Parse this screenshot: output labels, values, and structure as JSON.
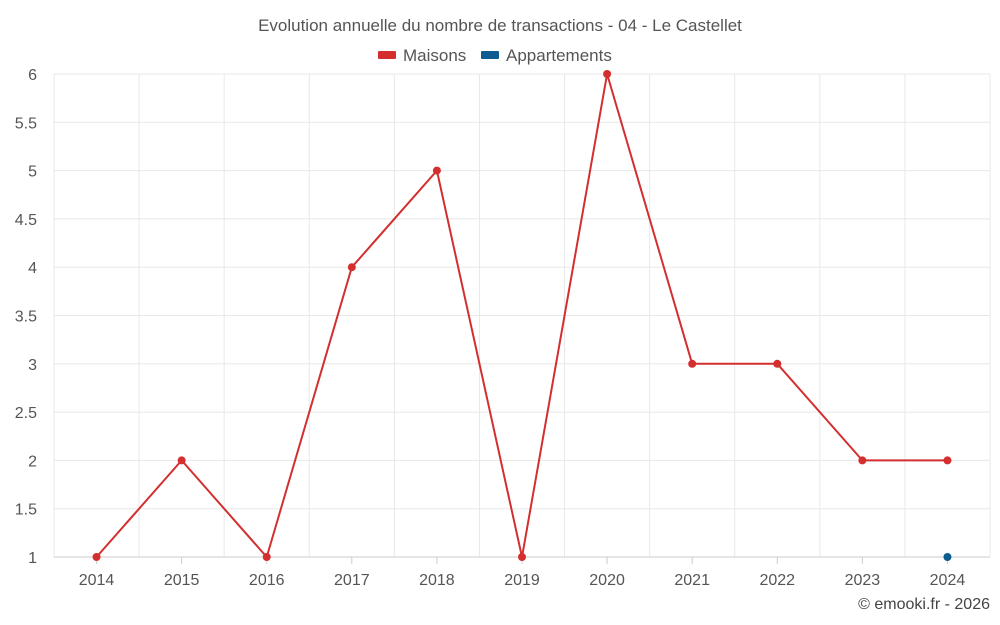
{
  "chart_data": {
    "type": "line",
    "title": "Evolution annuelle du nombre de transactions - 04 - Le Castellet",
    "x": [
      "2014",
      "2015",
      "2016",
      "2017",
      "2018",
      "2019",
      "2020",
      "2021",
      "2022",
      "2023",
      "2024"
    ],
    "series": [
      {
        "name": "Maisons",
        "color": "#d32f2f",
        "values": [
          1,
          2,
          1,
          4,
          5,
          1,
          6,
          3,
          3,
          2,
          2
        ]
      },
      {
        "name": "Appartements",
        "color": "#0d5c91",
        "values": [
          null,
          null,
          null,
          null,
          null,
          null,
          null,
          null,
          null,
          null,
          1
        ]
      }
    ],
    "yticks": [
      "1",
      "1.5",
      "2",
      "2.5",
      "3",
      "3.5",
      "4",
      "4.5",
      "5",
      "5.5",
      "6"
    ],
    "ylim": [
      1,
      6
    ],
    "grid": true,
    "legend_position": "top-center",
    "credit": "© emooki.fr - 2026"
  }
}
